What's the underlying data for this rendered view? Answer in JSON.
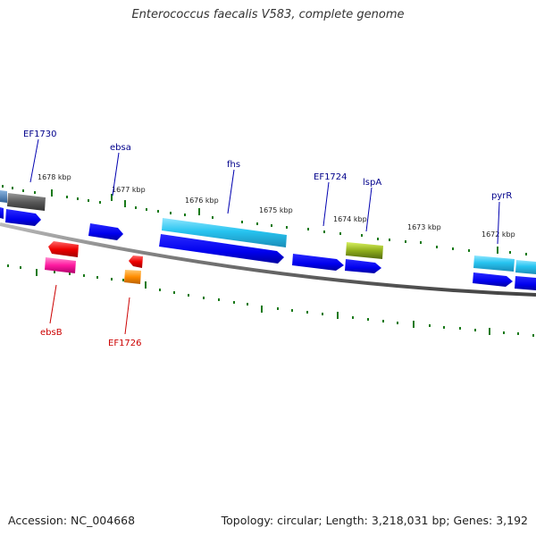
{
  "title": "Enterococcus faecalis V583, complete genome",
  "footer": {
    "accession": "Accession: NC_004668",
    "topology": "Topology: circular; Length: 3,218,031 bp; Genes: 3,192"
  },
  "ticks": {
    "labels": [
      "1678 kbp",
      "1677 kbp",
      "1676 kbp",
      "1675 kbp",
      "1674 kbp",
      "1673 kbp",
      "1672 kbp"
    ]
  },
  "genes_forward": [
    {
      "name": "EF1730",
      "color": "#00008b"
    },
    {
      "name": "ebsa",
      "color": "#00008b"
    },
    {
      "name": "fhs",
      "color": "#00008b"
    },
    {
      "name": "EF1724",
      "color": "#00008b"
    },
    {
      "name": "lspA",
      "color": "#00008b"
    },
    {
      "name": "pyrR",
      "color": "#00008b"
    }
  ],
  "genes_reverse": [
    {
      "name": "ebsB",
      "color": "#cc0000"
    },
    {
      "name": "EF1726",
      "color": "#cc0000"
    }
  ],
  "colors": {
    "backbone": "#777777",
    "tick": "#1a7a1a",
    "cds_blue": "#0000ee",
    "cyan": "#27c4f0",
    "grey": "#555555",
    "red": "#ee0000",
    "magenta": "#ff1aa0",
    "orange": "#ff8c00",
    "olive": "#8fae1b"
  }
}
